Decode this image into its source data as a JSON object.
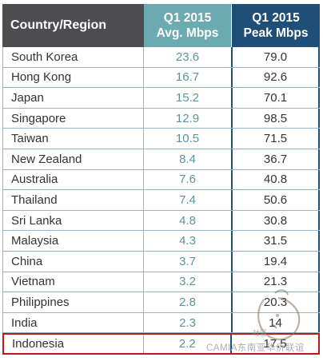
{
  "header": {
    "country_label": "Country/Region",
    "avg_line1": "Q1 2015",
    "avg_line2": "Avg. Mbps",
    "peak_line1": "Q1 2015",
    "peak_line2": "Peak Mbps"
  },
  "rows": [
    {
      "country": "South Korea",
      "avg": "23.6",
      "peak": "79.0"
    },
    {
      "country": "Hong Kong",
      "avg": "16.7",
      "peak": "92.6"
    },
    {
      "country": "Japan",
      "avg": "15.2",
      "peak": "70.1"
    },
    {
      "country": "Singapore",
      "avg": "12.9",
      "peak": "98.5"
    },
    {
      "country": "Taiwan",
      "avg": "10.5",
      "peak": "71.5"
    },
    {
      "country": "New Zealand",
      "avg": "8.4",
      "peak": "36.7"
    },
    {
      "country": "Australia",
      "avg": "7.6",
      "peak": "40.8"
    },
    {
      "country": "Thailand",
      "avg": "7.4",
      "peak": "50.6"
    },
    {
      "country": "Sri Lanka",
      "avg": "4.8",
      "peak": "30.8"
    },
    {
      "country": "Malaysia",
      "avg": "4.3",
      "peak": "31.5"
    },
    {
      "country": "China",
      "avg": "3.7",
      "peak": "19.4"
    },
    {
      "country": "Vietnam",
      "avg": "3.2",
      "peak": "21.3"
    },
    {
      "country": "Philippines",
      "avg": "2.8",
      "peak": "20.3"
    },
    {
      "country": "India",
      "avg": "2.3",
      "peak": "14"
    },
    {
      "country": "Indonesia",
      "avg": "2.2",
      "peak": "17.5"
    }
  ],
  "watermark": {
    "text": "CAMIA东南亚华侨联谊",
    "small": "社区"
  },
  "colors": {
    "header_country_bg": "#4d4d4f",
    "header_avg_bg": "#6aaab0",
    "header_peak_bg": "#1f4e79",
    "highlight_border": "#c0151a",
    "avg_text": "#5b9499"
  }
}
